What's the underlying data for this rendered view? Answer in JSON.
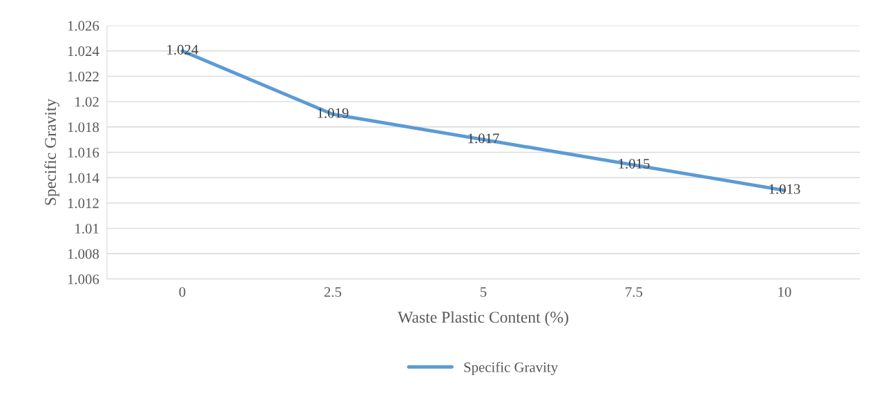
{
  "chart_data": {
    "type": "line",
    "xlabel": "Waste Plastic Content (%)",
    "ylabel": "Specific Gravity",
    "categories": [
      "0",
      "2.5",
      "5",
      "7.5",
      "10"
    ],
    "series": [
      {
        "name": "Specific Gravity",
        "color": "#5b9bd5",
        "values": [
          1.024,
          1.019,
          1.017,
          1.015,
          1.013
        ]
      }
    ],
    "ylim": [
      1.006,
      1.026
    ],
    "yticks": [
      1.006,
      1.008,
      1.01,
      1.012,
      1.014,
      1.016,
      1.018,
      1.02,
      1.022,
      1.024,
      1.026
    ],
    "grid": "y",
    "legend": "bottom",
    "data_labels": true,
    "marker": "none",
    "line_style": "solid"
  }
}
